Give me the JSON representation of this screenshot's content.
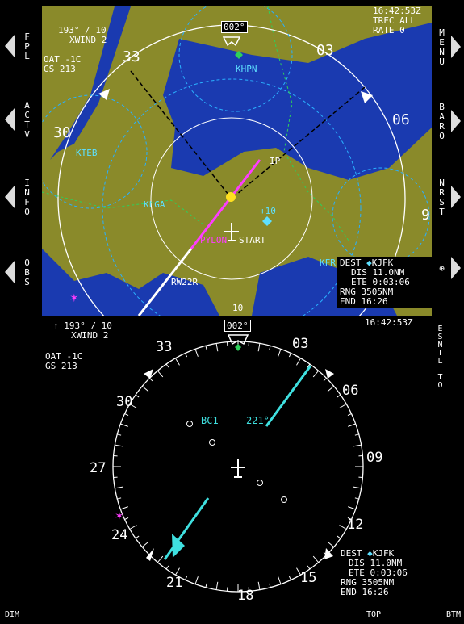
{
  "left_buttons": [
    {
      "label": "FPL"
    },
    {
      "label": "ACTV"
    },
    {
      "label": "INFO"
    },
    {
      "label": "OBS"
    }
  ],
  "right_buttons": [
    {
      "label": "MENU"
    },
    {
      "label": "BARO"
    },
    {
      "label": "NRST"
    },
    {
      "label": "⊕"
    },
    {
      "label": "ESNTL TO"
    }
  ],
  "map": {
    "heading": "002°",
    "wind_dir": "193° / 10",
    "xwind": "XWIND  2",
    "oat": "OAT  -1C",
    "gs": "GS  213",
    "time": "16:42:53Z",
    "traffic": "TRFC ALL",
    "rate": "RATE  0",
    "compass": [
      "33",
      "03",
      "06",
      "30",
      "9",
      "10"
    ],
    "waypoints": [
      "KHPN",
      "KTEB",
      "KLGA",
      "IP",
      "START",
      "RW22R",
      "KFR",
      "+10",
      "PYLON"
    ],
    "dest_label": "DEST",
    "dest": "KJFK",
    "dis": "DIS  11.0NM",
    "ete": "ETE 0:03:06",
    "rng": "RNG 3505NM",
    "end": "END 16:26"
  },
  "hsi": {
    "heading": "002°",
    "wind_dir": "193° / 10",
    "xwind": "XWIND  2",
    "oat": "OAT  -1C",
    "gs": "GS  213",
    "time": "16:42:53Z",
    "compass": [
      "33",
      "03",
      "30",
      "06",
      "27",
      "09",
      "24",
      "12",
      "21",
      "15",
      "18"
    ],
    "bc": "BC1",
    "course": "221°",
    "dest_label": "DEST",
    "dest": "KJFK",
    "dis": "DIS  11.0NM",
    "ete": "ETE 0:03:06",
    "rng": "RNG 3505NM",
    "end": "END 16:26"
  },
  "bottom": {
    "dim": "DIM",
    "top": "TOP",
    "btm": "BTM"
  },
  "colors": {
    "land": "#8a8a2a",
    "water": "#1a3ab0",
    "cyan": "#5ee0ff",
    "magenta": "#ff3cff"
  }
}
